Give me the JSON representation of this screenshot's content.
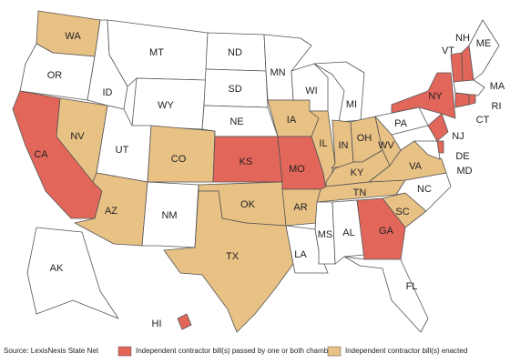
{
  "states": [
    {
      "label": "WA",
      "color": "#e8c185"
    },
    {
      "label": "OR",
      "color": "#ffffff"
    },
    {
      "label": "CA",
      "color": "#e2665a"
    },
    {
      "label": "NV",
      "color": "#e8c185"
    },
    {
      "label": "ID",
      "color": "#ffffff"
    },
    {
      "label": "MT",
      "color": "#ffffff"
    },
    {
      "label": "WY",
      "color": "#ffffff"
    },
    {
      "label": "UT",
      "color": "#ffffff"
    },
    {
      "label": "CO",
      "color": "#e8c185"
    },
    {
      "label": "AZ",
      "color": "#e8c185"
    },
    {
      "label": "NM",
      "color": "#ffffff"
    },
    {
      "label": "ND",
      "color": "#ffffff"
    },
    {
      "label": "SD",
      "color": "#ffffff"
    },
    {
      "label": "NE",
      "color": "#ffffff"
    },
    {
      "label": "KS",
      "color": "#e2665a"
    },
    {
      "label": "OK",
      "color": "#e8c185"
    },
    {
      "label": "TX",
      "color": "#e8c185"
    },
    {
      "label": "MN",
      "color": "#ffffff"
    },
    {
      "label": "IA",
      "color": "#e8c185"
    },
    {
      "label": "MO",
      "color": "#e2665a"
    },
    {
      "label": "AR",
      "color": "#e8c185"
    },
    {
      "label": "LA",
      "color": "#ffffff"
    },
    {
      "label": "WI",
      "color": "#ffffff"
    },
    {
      "label": "IL",
      "color": "#e8c185"
    },
    {
      "label": "MI",
      "color": "#ffffff"
    },
    {
      "label": "IN",
      "color": "#e8c185"
    },
    {
      "label": "OH",
      "color": "#e8c185"
    },
    {
      "label": "KY",
      "color": "#e8c185"
    },
    {
      "label": "TN",
      "color": "#e8c185"
    },
    {
      "label": "MS",
      "color": "#ffffff"
    },
    {
      "label": "AL",
      "color": "#ffffff"
    },
    {
      "label": "GA",
      "color": "#e2665a"
    },
    {
      "label": "FL",
      "color": "#ffffff"
    },
    {
      "label": "SC",
      "color": "#e8c185"
    },
    {
      "label": "NC",
      "color": "#ffffff"
    },
    {
      "label": "VA",
      "color": "#e8c185"
    },
    {
      "label": "WV",
      "color": "#e8c185"
    },
    {
      "label": "PA",
      "color": "#ffffff"
    },
    {
      "label": "NY",
      "color": "#e2665a"
    },
    {
      "label": "NJ",
      "color": "#e2665a"
    },
    {
      "label": "DE",
      "color": "#e2665a"
    },
    {
      "label": "MD",
      "color": "#ffffff"
    },
    {
      "label": "VT",
      "color": "#e2665a"
    },
    {
      "label": "NH",
      "color": "#e2665a"
    },
    {
      "label": "ME",
      "color": "#ffffff"
    },
    {
      "label": "MA",
      "color": "#ffffff"
    },
    {
      "label": "CT",
      "color": "#e2665a"
    },
    {
      "label": "RI",
      "color": "#e2665a"
    },
    {
      "label": "AK",
      "color": "#ffffff"
    },
    {
      "label": "HI",
      "color": "#e2665a"
    }
  ],
  "legend": [
    {
      "label": "Independent contractor bill(s) passed by one or both chambers",
      "color": "#e2665a"
    },
    {
      "label": "Independent contractor bill(s) enacted",
      "color": "#e8c185"
    }
  ],
  "source": "Source: LexisNexis State Net"
}
